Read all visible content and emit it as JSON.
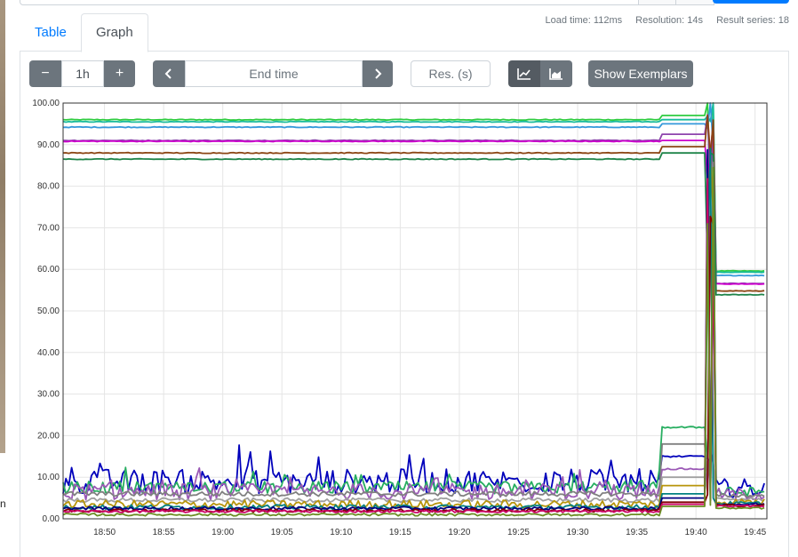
{
  "stats": {
    "load_time": "Load time: 112ms",
    "resolution": "Resolution: 14s",
    "result_series": "Result series: 18"
  },
  "tabs": [
    {
      "label": "Table",
      "active": false
    },
    {
      "label": "Graph",
      "active": true
    }
  ],
  "controls": {
    "range_minus": "−",
    "range_value": "1h",
    "range_plus": "+",
    "prev_icon": "chevron-left-icon",
    "end_time_placeholder": "End time",
    "next_icon": "chevron-right-icon",
    "resolution_placeholder": "Res. (s)",
    "line_icon": "line-chart-icon",
    "stacked_icon": "stacked-area-chart-icon",
    "exemplars_label": "Show Exemplars"
  },
  "left_edge_text": "n",
  "chart_data": {
    "type": "line",
    "ylim": [
      0,
      100
    ],
    "y_ticks": [
      "0.00",
      "10.00",
      "20.00",
      "30.00",
      "40.00",
      "50.00",
      "60.00",
      "70.00",
      "80.00",
      "90.00",
      "100.00"
    ],
    "x_ticks": [
      "18:50",
      "18:55",
      "19:00",
      "19:05",
      "19:10",
      "19:15",
      "19:20",
      "19:25",
      "19:30",
      "19:35",
      "19:40",
      "19:45"
    ],
    "x_range_minutes": [
      46.5,
      106
    ],
    "x_tick_minutes": [
      50,
      55,
      60,
      65,
      70,
      75,
      80,
      85,
      90,
      95,
      100,
      105
    ],
    "series": [
      {
        "color": "#2ecc40",
        "base": 96.0,
        "jump": 97.0,
        "noise": 0.1
      },
      {
        "color": "#1abc9c",
        "base": 95.5,
        "jump": 96.0,
        "noise": 0.1
      },
      {
        "color": "#3498db",
        "base": 94.2,
        "jump": 95.0,
        "noise": 0.1
      },
      {
        "color": "#8e44ad",
        "base": 91.0,
        "jump": 92.5,
        "noise": 0.1
      },
      {
        "color": "#cc00cc",
        "base": 90.8,
        "jump": 91.0,
        "noise": 0.1
      },
      {
        "color": "#8b4513",
        "base": 88.0,
        "jump": 89.5,
        "noise": 0.1
      },
      {
        "color": "#1e8449",
        "base": 86.5,
        "jump": 88.0,
        "noise": 0.1
      },
      {
        "color": "#0000bb",
        "base": 9.0,
        "jump": 15.0,
        "noise": 3.0
      },
      {
        "color": "#27ae60",
        "base": 7.5,
        "jump": 22.0,
        "noise": 1.5
      },
      {
        "color": "#9b59b6",
        "base": 6.5,
        "jump": 12.0,
        "noise": 2.0
      },
      {
        "color": "#808080",
        "base": 6.0,
        "jump": 18.0,
        "noise": 0.6
      },
      {
        "color": "#a0a0a0",
        "base": 4.5,
        "jump": 10.0,
        "noise": 0.5
      },
      {
        "color": "#b7950b",
        "base": 3.5,
        "jump": 8.0,
        "noise": 1.0
      },
      {
        "color": "#008080",
        "base": 2.8,
        "jump": 6.0,
        "noise": 0.6
      },
      {
        "color": "#000080",
        "base": 2.5,
        "jump": 5.0,
        "noise": 0.4
      },
      {
        "color": "#800000",
        "base": 2.0,
        "jump": 4.0,
        "noise": 0.4
      },
      {
        "color": "#cc0066",
        "base": 1.8,
        "jump": 3.5,
        "noise": 0.3
      },
      {
        "color": "#6b8e23",
        "base": 1.0,
        "jump": 3.0,
        "noise": 0.3
      }
    ]
  }
}
